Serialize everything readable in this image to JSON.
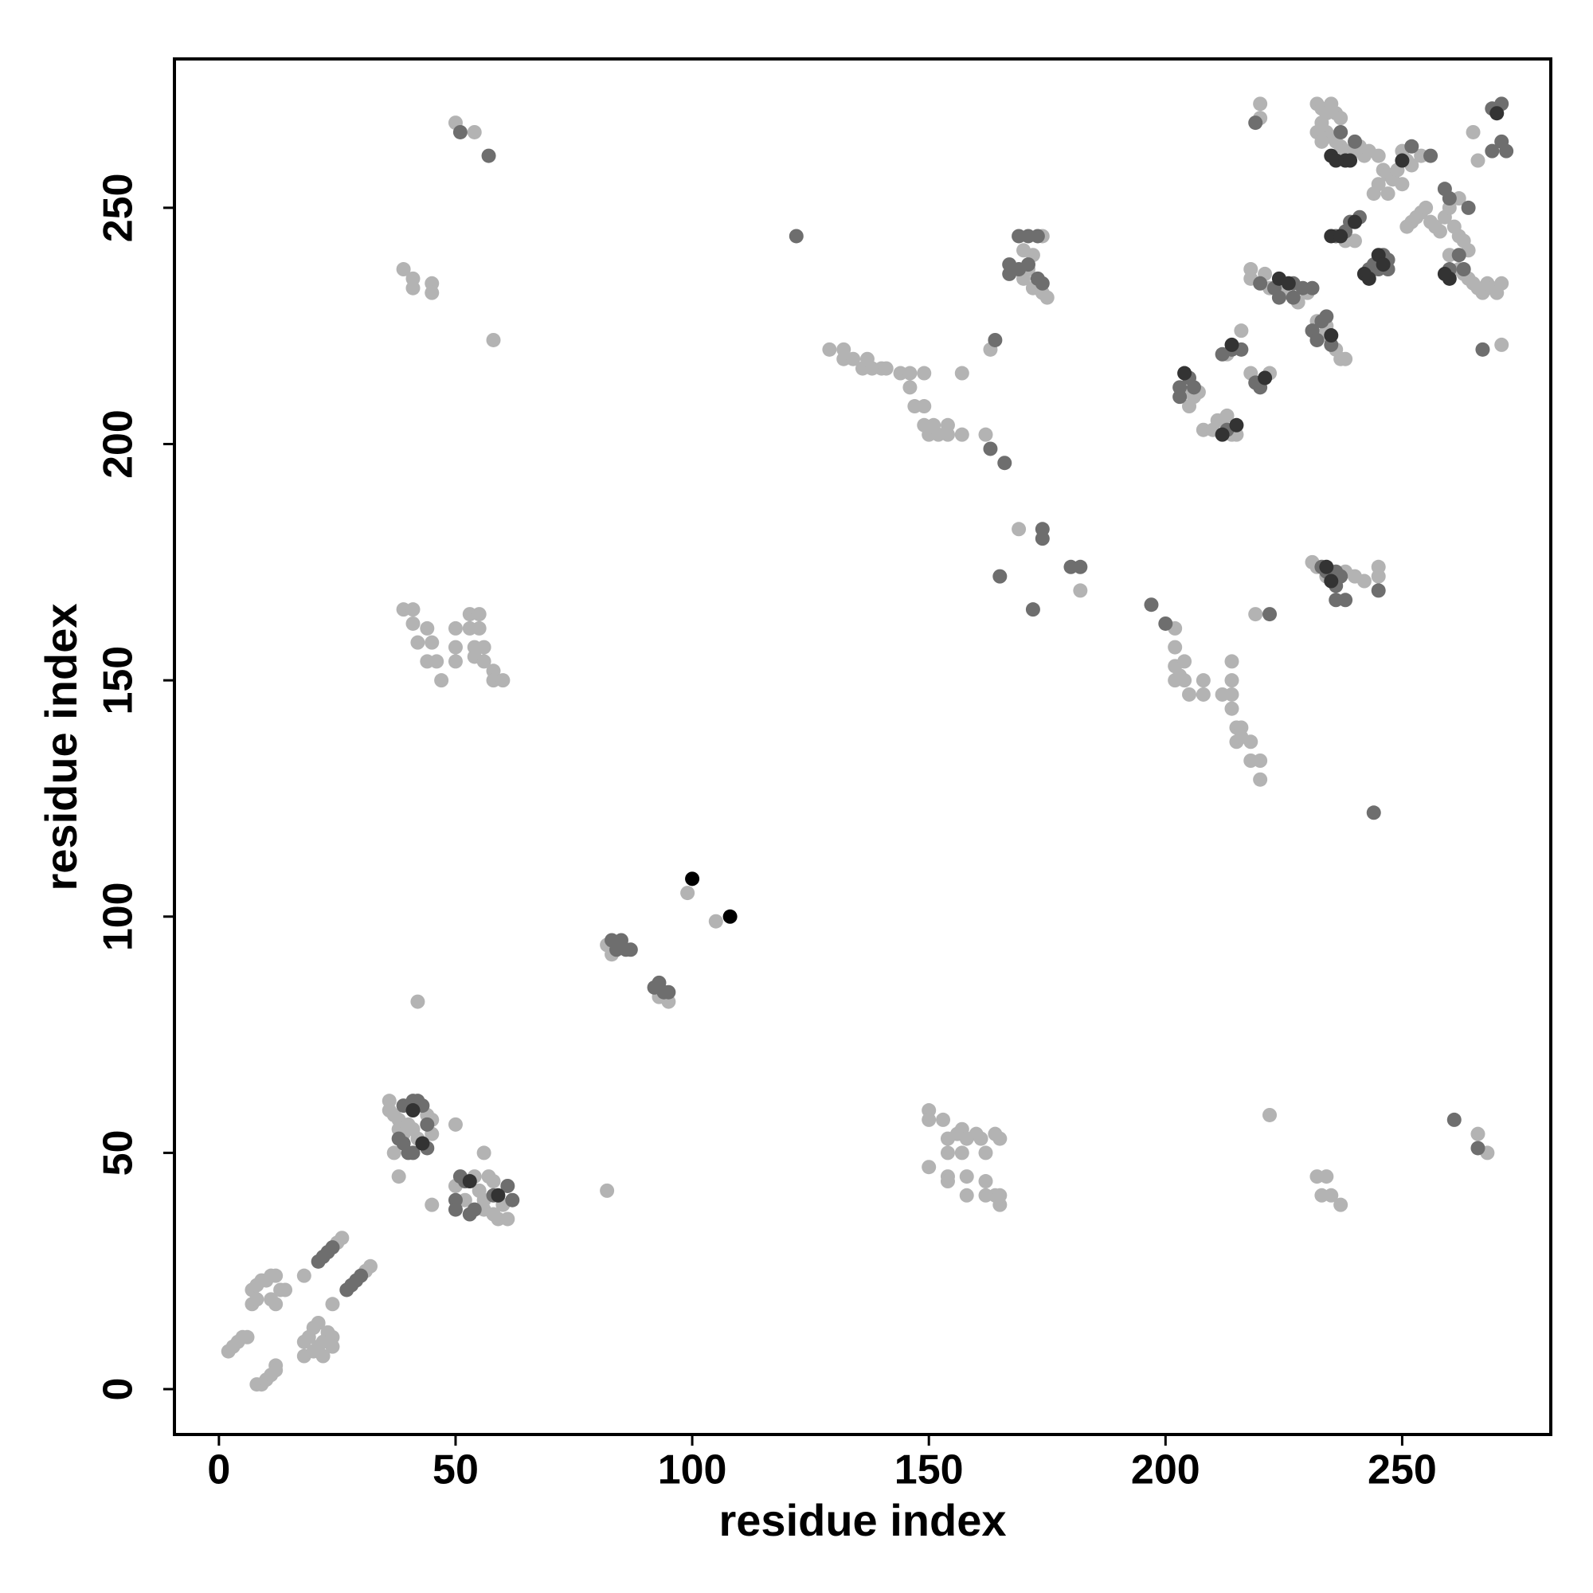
{
  "chart_data": {
    "type": "scatter",
    "xlabel": "residue index",
    "ylabel": "residue index",
    "xlim": [
      -9.4,
      281.4
    ],
    "ylim": [
      -9.6,
      281.5
    ],
    "xticks": [
      0,
      50,
      100,
      150,
      200,
      250
    ],
    "yticks": [
      0,
      50,
      100,
      150,
      200,
      250
    ],
    "series": [
      {
        "color": "#b3b3b3",
        "x": [
          2,
          3,
          4,
          5,
          6,
          8,
          9,
          10,
          11,
          12,
          12,
          7,
          7,
          8,
          9,
          10,
          11,
          12,
          11,
          12,
          13,
          14,
          8,
          18,
          18,
          18,
          19,
          20,
          21,
          22,
          22,
          23,
          24,
          24,
          20,
          21,
          24,
          25,
          26,
          31,
          32,
          36,
          36,
          37,
          38,
          38,
          39,
          40,
          41,
          42,
          43,
          44,
          45,
          45,
          37,
          38,
          45,
          42,
          50,
          50,
          52,
          54,
          55,
          56,
          56,
          57,
          58,
          58,
          59,
          60,
          61,
          56,
          82,
          82,
          83,
          93,
          95,
          99,
          105,
          50,
          54,
          39,
          41,
          41,
          45,
          45,
          58,
          39,
          41,
          41,
          42,
          44,
          44,
          45,
          46,
          47,
          50,
          50,
          50,
          53,
          53,
          54,
          54,
          55,
          55,
          56,
          56,
          58,
          58,
          60,
          129,
          132,
          132,
          134,
          136,
          137,
          138,
          140,
          141,
          144,
          146,
          146,
          147,
          149,
          149,
          149,
          150,
          151,
          152,
          154,
          154,
          157,
          162,
          157,
          163,
          174,
          170,
          172,
          170,
          172,
          174,
          175,
          171,
          169,
          182,
          202,
          202,
          202,
          202,
          203,
          204,
          205,
          204,
          208,
          208,
          212,
          214,
          214,
          214,
          214,
          215,
          216,
          215,
          216,
          218,
          218,
          220,
          220,
          219,
          231,
          232,
          234,
          238,
          240,
          242,
          245,
          245,
          222,
          232,
          234,
          233,
          235,
          237,
          266,
          268,
          150,
          150,
          153,
          150,
          154,
          154,
          154,
          154,
          156,
          157,
          157,
          158,
          158,
          158,
          160,
          161,
          162,
          162,
          162,
          164,
          164,
          165,
          165,
          165,
          204,
          205,
          206,
          207,
          208,
          210,
          211,
          212,
          213,
          214,
          215,
          213,
          216,
          218,
          222,
          218,
          218,
          221,
          222,
          225,
          228,
          230,
          220,
          220,
          233,
          234,
          236,
          237,
          238,
          232,
          238,
          240,
          232,
          233,
          234,
          235,
          236,
          237,
          233,
          234,
          235,
          236,
          237,
          238,
          239,
          240,
          241,
          242,
          232,
          233,
          243,
          245,
          246,
          247,
          248,
          249,
          250,
          251,
          252,
          254,
          245,
          244,
          247,
          250,
          251,
          252,
          253,
          254,
          255,
          256,
          257,
          258,
          259,
          260,
          261,
          262,
          263,
          260,
          262,
          263,
          264,
          265,
          266,
          267,
          268,
          269,
          270,
          271,
          264,
          262,
          266,
          265,
          271
        ],
        "values": [
          8,
          9,
          10,
          11,
          11,
          1,
          1,
          2,
          3,
          4,
          5,
          18,
          21,
          22,
          23,
          23,
          24,
          24,
          19,
          18,
          21,
          21,
          19,
          24,
          7,
          10,
          11,
          8,
          9,
          7,
          10,
          12,
          11,
          9,
          13,
          14,
          18,
          31,
          32,
          25,
          26,
          61,
          59,
          58,
          57,
          55,
          54,
          56,
          55,
          53,
          52,
          58,
          57,
          54,
          50,
          45,
          39,
          82,
          56,
          43,
          40,
          45,
          42,
          40,
          38,
          45,
          44,
          37,
          36,
          39,
          36,
          50,
          42,
          94,
          92,
          83,
          82,
          105,
          99,
          268,
          266,
          237,
          235,
          233,
          234,
          232,
          222,
          165,
          165,
          162,
          158,
          161,
          154,
          158,
          154,
          150,
          161,
          157,
          154,
          164,
          161,
          157,
          155,
          164,
          161,
          157,
          154,
          152,
          150,
          150,
          220,
          220,
          218,
          218,
          216,
          218,
          216,
          216,
          216,
          215,
          215,
          212,
          208,
          215,
          208,
          204,
          202,
          204,
          202,
          204,
          202,
          202,
          202,
          215,
          220,
          244,
          241,
          240,
          235,
          233,
          232,
          231,
          237,
          182,
          169,
          161,
          157,
          153,
          150,
          151,
          154,
          147,
          150,
          150,
          147,
          147,
          147,
          154,
          150,
          144,
          140,
          140,
          137,
          138,
          137,
          133,
          133,
          129,
          164,
          175,
          174,
          172,
          173,
          172,
          171,
          174,
          172,
          58,
          45,
          45,
          41,
          41,
          39,
          54,
          50,
          59,
          57,
          57,
          47,
          53,
          50,
          45,
          44,
          54,
          55,
          50,
          53,
          45,
          41,
          54,
          53,
          50,
          44,
          41,
          41,
          54,
          53,
          39,
          41,
          211,
          208,
          210,
          211,
          203,
          203,
          205,
          205,
          206,
          202,
          202,
          219,
          224,
          215,
          215,
          237,
          235,
          236,
          233,
          232,
          230,
          232,
          269,
          272,
          223,
          225,
          220,
          218,
          218,
          226,
          243,
          243,
          272,
          271,
          270,
          272,
          270,
          269,
          268,
          266,
          265,
          264,
          263,
          262,
          261,
          262,
          263,
          261,
          266,
          264,
          262,
          261,
          258,
          257,
          256,
          258,
          262,
          260,
          259,
          261,
          255,
          253,
          253,
          255,
          246,
          247,
          248,
          249,
          250,
          247,
          246,
          245,
          248,
          250,
          246,
          244,
          243,
          240,
          237,
          236,
          235,
          234,
          233,
          232,
          234,
          233,
          232,
          234,
          241,
          252,
          260,
          266,
          221
        ]
      },
      {
        "color": "#6e6e6e",
        "x": [
          21,
          22,
          23,
          24,
          27,
          28,
          29,
          30,
          38,
          39,
          40,
          41,
          41,
          42,
          43,
          44,
          44,
          39,
          50,
          50,
          51,
          52,
          53,
          54,
          58,
          61,
          62,
          83,
          84,
          85,
          86,
          87,
          92,
          93,
          94,
          95,
          51,
          57,
          122,
          163,
          166,
          164,
          169,
          171,
          173,
          167,
          167,
          169,
          171,
          173,
          174,
          174,
          174,
          165,
          172,
          180,
          182,
          197,
          200,
          244,
          222,
          233,
          234,
          236,
          237,
          236,
          238,
          245,
          236,
          261,
          266,
          203,
          203,
          205,
          206,
          212,
          214,
          216,
          213,
          219,
          220,
          220,
          223,
          224,
          227,
          227,
          229,
          231,
          219,
          231,
          233,
          234,
          232,
          235,
          236,
          238,
          239,
          241,
          244,
          246,
          247,
          243,
          245,
          247,
          240,
          237,
          252,
          256,
          259,
          260,
          264,
          262,
          263,
          260,
          269,
          271,
          269,
          271,
          272,
          267
        ],
        "values": [
          27,
          28,
          29,
          30,
          21,
          22,
          23,
          24,
          53,
          52,
          50,
          50,
          61,
          61,
          60,
          56,
          51,
          60,
          40,
          38,
          45,
          44,
          37,
          38,
          41,
          43,
          40,
          95,
          93,
          95,
          93,
          93,
          85,
          86,
          84,
          84,
          266,
          261,
          244,
          199,
          196,
          222,
          244,
          244,
          244,
          238,
          236,
          237,
          238,
          235,
          234,
          182,
          180,
          172,
          165,
          174,
          174,
          166,
          162,
          122,
          164,
          174,
          173,
          173,
          172,
          167,
          167,
          169,
          170,
          57,
          51,
          212,
          210,
          214,
          212,
          219,
          220,
          220,
          203,
          213,
          212,
          234,
          233,
          231,
          231,
          234,
          233,
          233,
          268,
          224,
          226,
          227,
          222,
          221,
          244,
          245,
          247,
          248,
          238,
          240,
          239,
          237,
          237,
          237,
          264,
          266,
          263,
          261,
          254,
          252,
          250,
          240,
          237,
          237,
          271,
          272,
          262,
          264,
          262,
          220
        ]
      },
      {
        "color": "#333333",
        "x": [
          41,
          43,
          53,
          59,
          204,
          212,
          215,
          214,
          221,
          224,
          226,
          235,
          235,
          237,
          240,
          245,
          246,
          242,
          243,
          235,
          236,
          238,
          239,
          250,
          259,
          260,
          270,
          234,
          235
        ],
        "values": [
          59,
          52,
          44,
          41,
          215,
          202,
          204,
          221,
          214,
          235,
          234,
          223,
          244,
          244,
          247,
          240,
          238,
          236,
          235,
          261,
          260,
          260,
          260,
          260,
          236,
          235,
          270,
          174,
          171
        ]
      },
      {
        "color": "#000000",
        "x": [
          100,
          108
        ],
        "values": [
          108,
          100
        ]
      }
    ]
  }
}
